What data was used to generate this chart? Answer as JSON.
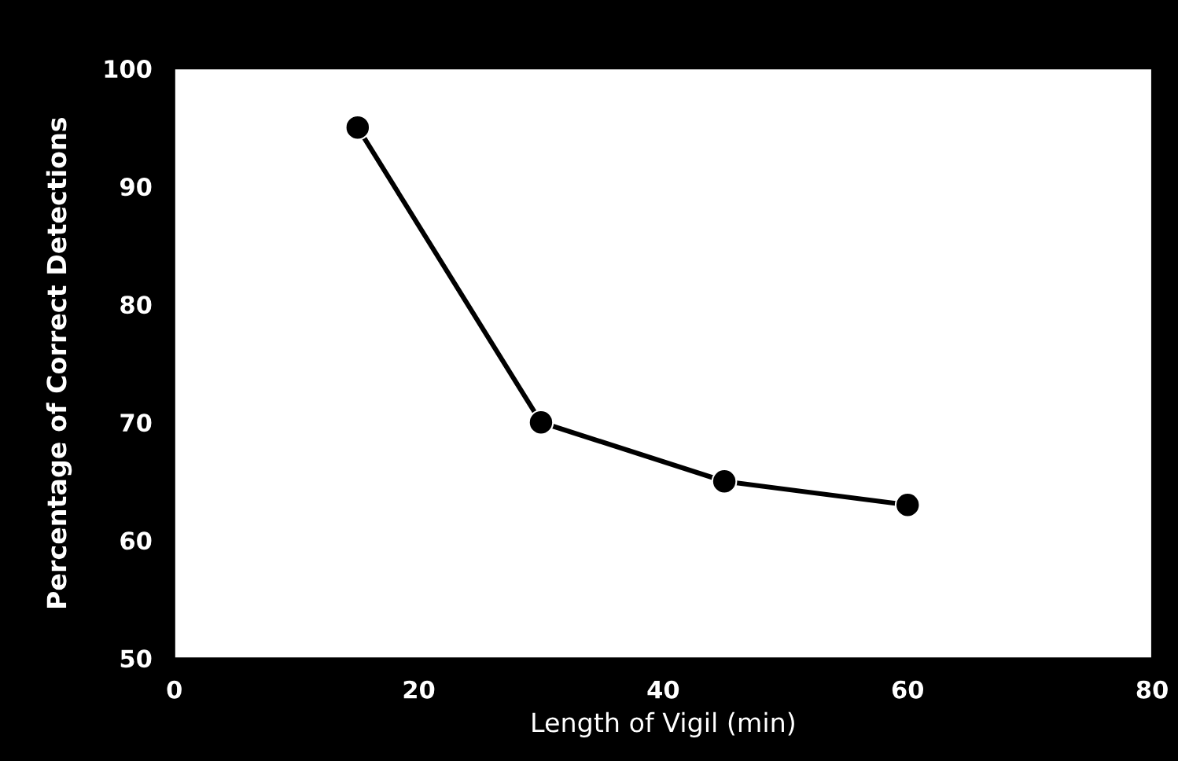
{
  "chart_data": {
    "type": "line",
    "xlabel": "Length of Vigil (min)",
    "ylabel": "Percentage of Correct Detections",
    "x": [
      15,
      30,
      45,
      60
    ],
    "series": [
      {
        "color": "#000000",
        "values": [
          95,
          70,
          65,
          63
        ]
      }
    ],
    "xlim": [
      0,
      80
    ],
    "xticks": [
      0,
      20,
      40,
      60,
      80
    ],
    "ylim": [
      50,
      100
    ],
    "yticks": [
      50,
      60,
      70,
      80,
      90,
      100
    ],
    "grid": false,
    "legend": false,
    "marker": "circle",
    "line_style": "solid"
  }
}
